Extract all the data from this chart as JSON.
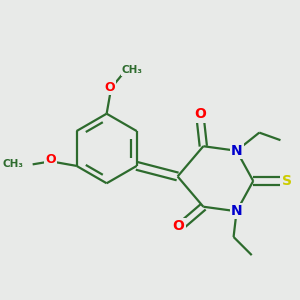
{
  "background_color": "#e8eae8",
  "bond_color": "#2d6b2d",
  "atom_colors": {
    "O": "#ff0000",
    "N": "#0000cc",
    "S": "#cccc00",
    "C": "#2d6b2d"
  },
  "figsize": [
    3.0,
    3.0
  ],
  "dpi": 100,
  "bond_lw": 1.6,
  "font_size": 9
}
